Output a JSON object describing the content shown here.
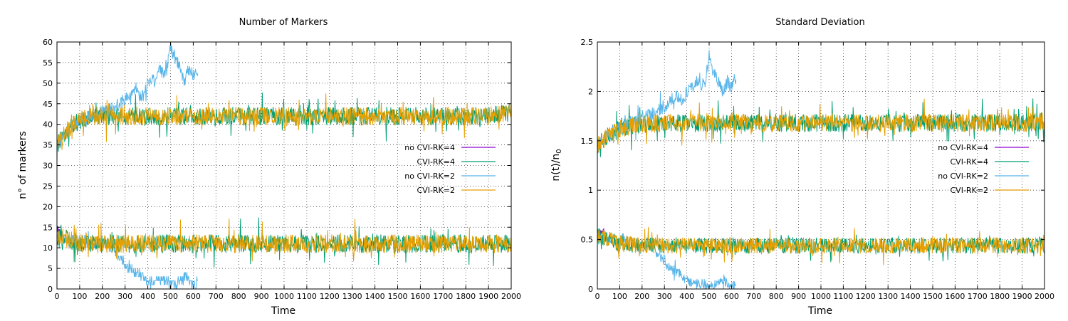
{
  "chart_data": [
    {
      "type": "line",
      "title": "Number of Markers",
      "xlabel": "Time",
      "ylabel": "n° of markers",
      "xlim": [
        0,
        2000
      ],
      "ylim": [
        0,
        60
      ],
      "xticks": [
        0,
        100,
        200,
        300,
        400,
        500,
        600,
        700,
        800,
        900,
        1000,
        1100,
        1200,
        1300,
        1400,
        1500,
        1600,
        1700,
        1800,
        1900,
        2000
      ],
      "yticks": [
        0,
        5,
        10,
        15,
        20,
        25,
        30,
        35,
        40,
        45,
        50,
        55,
        60
      ],
      "grid": true,
      "legend_position": "right-middle",
      "series": [
        {
          "name": "no CVI-RK=4",
          "color": "#9400d3",
          "x": [
            0,
            10,
            20
          ],
          "values": [
            15,
            14,
            13
          ]
        },
        {
          "name": "CVI-RK=4",
          "color": "#009e73",
          "x": [
            0,
            25,
            50,
            100,
            150,
            200,
            300,
            400,
            500,
            600,
            700,
            800,
            900,
            1000,
            1100,
            1200,
            1300,
            1400,
            1500,
            1600,
            1700,
            1800,
            1900,
            2000
          ],
          "values": [
            35,
            37,
            39,
            41,
            42,
            42,
            42,
            42,
            42,
            42,
            42,
            42,
            42,
            42,
            42,
            42,
            42,
            42,
            42,
            42,
            42,
            42,
            42,
            43
          ]
        },
        {
          "name": "no CVI-RK=2",
          "color": "#56b4e9",
          "x": [
            0,
            50,
            100,
            150,
            200,
            250,
            300,
            350,
            380,
            400,
            430,
            450,
            480,
            500,
            520,
            540,
            560,
            580,
            600,
            620
          ],
          "values": [
            35,
            39,
            41,
            42,
            43,
            44,
            46,
            48,
            47,
            50,
            51,
            53,
            52,
            59,
            56,
            54,
            51,
            53,
            52,
            53
          ]
        },
        {
          "name": "CVI-RK=2",
          "color": "#e69f00",
          "x": [
            0,
            25,
            50,
            100,
            150,
            200,
            300,
            400,
            500,
            600,
            700,
            800,
            900,
            1000,
            1100,
            1200,
            1300,
            1400,
            1500,
            1600,
            1700,
            1800,
            1900,
            2000
          ],
          "values": [
            35,
            37,
            39,
            41,
            42,
            42,
            42,
            42,
            42,
            42,
            42,
            42,
            42,
            42,
            42,
            42,
            42,
            42,
            42,
            42,
            42,
            42,
            42,
            43
          ]
        },
        {
          "name": "no CVI-RK=2",
          "color": "#56b4e9",
          "x": [
            0,
            50,
            100,
            150,
            200,
            250,
            270,
            300,
            320,
            350,
            380,
            400,
            430,
            450,
            480,
            500,
            520,
            540,
            560,
            580,
            600,
            620
          ],
          "values": [
            13,
            12,
            12,
            11,
            11,
            10,
            8,
            6,
            5,
            4,
            3,
            2,
            2,
            2,
            2,
            1,
            1,
            2,
            3,
            2,
            1,
            1
          ]
        },
        {
          "name": "CVI-RK=4",
          "color": "#009e73",
          "x": [
            0,
            50,
            100,
            200,
            300,
            400,
            500,
            600,
            700,
            800,
            900,
            1000,
            1100,
            1200,
            1300,
            1400,
            1500,
            1600,
            1700,
            1800,
            1900,
            2000
          ],
          "values": [
            13,
            12,
            11,
            11,
            11,
            11,
            11,
            11,
            11,
            11,
            11,
            11,
            11,
            11,
            11,
            11,
            11,
            11,
            11,
            11,
            11,
            11
          ]
        },
        {
          "name": "CVI-RK=2",
          "color": "#e69f00",
          "x": [
            0,
            50,
            100,
            200,
            300,
            400,
            500,
            600,
            700,
            800,
            900,
            1000,
            1100,
            1200,
            1300,
            1400,
            1500,
            1600,
            1700,
            1800,
            1900,
            2000
          ],
          "values": [
            13,
            12,
            11,
            11,
            11,
            11,
            11,
            11,
            11,
            11,
            11,
            11,
            11,
            11,
            11,
            11,
            11,
            11,
            11,
            11,
            11,
            11
          ]
        }
      ]
    },
    {
      "type": "line",
      "title": "Standard Deviation",
      "xlabel": "Time",
      "ylabel": "n(t)/n0",
      "xlim": [
        0,
        2000
      ],
      "ylim": [
        0,
        2.5
      ],
      "xticks": [
        0,
        100,
        200,
        300,
        400,
        500,
        600,
        700,
        800,
        900,
        1000,
        1100,
        1200,
        1300,
        1400,
        1500,
        1600,
        1700,
        1800,
        1900,
        2000
      ],
      "yticks": [
        0,
        0.5,
        1,
        1.5,
        2,
        2.5
      ],
      "grid": true,
      "legend_position": "right-middle",
      "series": [
        {
          "name": "no CVI-RK=4",
          "color": "#9400d3",
          "x": [
            0,
            10,
            20,
            30
          ],
          "values": [
            0.55,
            0.56,
            0.58,
            0.6
          ]
        },
        {
          "name": "CVI-RK=4",
          "color": "#009e73",
          "x": [
            0,
            25,
            50,
            100,
            150,
            200,
            300,
            400,
            500,
            600,
            700,
            800,
            900,
            1000,
            1100,
            1200,
            1300,
            1400,
            1500,
            1600,
            1700,
            1800,
            1900,
            2000
          ],
          "values": [
            1.45,
            1.5,
            1.55,
            1.62,
            1.65,
            1.67,
            1.68,
            1.68,
            1.68,
            1.68,
            1.68,
            1.68,
            1.68,
            1.68,
            1.68,
            1.68,
            1.68,
            1.68,
            1.68,
            1.68,
            1.68,
            1.68,
            1.68,
            1.7
          ]
        },
        {
          "name": "no CVI-RK=2",
          "color": "#56b4e9",
          "x": [
            0,
            50,
            100,
            150,
            200,
            250,
            300,
            350,
            380,
            400,
            430,
            450,
            480,
            500,
            520,
            540,
            560,
            580,
            600,
            620
          ],
          "values": [
            1.45,
            1.55,
            1.62,
            1.68,
            1.72,
            1.78,
            1.85,
            1.95,
            1.9,
            2.0,
            2.05,
            2.1,
            2.05,
            2.35,
            2.2,
            2.1,
            2.0,
            2.1,
            2.05,
            2.15
          ]
        },
        {
          "name": "CVI-RK=2",
          "color": "#e69f00",
          "x": [
            0,
            25,
            50,
            100,
            150,
            200,
            300,
            400,
            500,
            600,
            700,
            800,
            900,
            1000,
            1100,
            1200,
            1300,
            1400,
            1500,
            1600,
            1700,
            1800,
            1900,
            2000
          ],
          "values": [
            1.45,
            1.5,
            1.55,
            1.62,
            1.65,
            1.67,
            1.68,
            1.68,
            1.68,
            1.68,
            1.68,
            1.68,
            1.68,
            1.68,
            1.68,
            1.68,
            1.68,
            1.68,
            1.68,
            1.68,
            1.68,
            1.68,
            1.68,
            1.7
          ]
        },
        {
          "name": "no CVI-RK=2",
          "color": "#56b4e9",
          "x": [
            0,
            50,
            100,
            150,
            200,
            250,
            270,
            300,
            320,
            350,
            380,
            400,
            430,
            450,
            480,
            500,
            520,
            540,
            560,
            580,
            600,
            620
          ],
          "values": [
            0.55,
            0.52,
            0.5,
            0.48,
            0.45,
            0.42,
            0.35,
            0.28,
            0.22,
            0.18,
            0.12,
            0.08,
            0.06,
            0.06,
            0.05,
            0.03,
            0.03,
            0.06,
            0.1,
            0.06,
            0.03,
            0.03
          ]
        },
        {
          "name": "CVI-RK=4",
          "color": "#009e73",
          "x": [
            0,
            50,
            100,
            200,
            300,
            400,
            500,
            600,
            700,
            800,
            900,
            1000,
            1100,
            1200,
            1300,
            1400,
            1500,
            1600,
            1700,
            1800,
            1900,
            2000
          ],
          "values": [
            0.55,
            0.5,
            0.46,
            0.44,
            0.44,
            0.44,
            0.44,
            0.44,
            0.44,
            0.44,
            0.44,
            0.44,
            0.44,
            0.44,
            0.44,
            0.44,
            0.44,
            0.44,
            0.44,
            0.44,
            0.44,
            0.44
          ]
        },
        {
          "name": "CVI-RK=2",
          "color": "#e69f00",
          "x": [
            0,
            50,
            100,
            200,
            300,
            400,
            500,
            600,
            700,
            800,
            900,
            1000,
            1100,
            1200,
            1300,
            1400,
            1500,
            1600,
            1700,
            1800,
            1900,
            2000
          ],
          "values": [
            0.55,
            0.5,
            0.46,
            0.44,
            0.44,
            0.44,
            0.44,
            0.44,
            0.44,
            0.44,
            0.44,
            0.44,
            0.44,
            0.44,
            0.44,
            0.44,
            0.44,
            0.44,
            0.44,
            0.44,
            0.44,
            0.44
          ]
        }
      ]
    }
  ],
  "legend": {
    "entries": [
      {
        "label": "no CVI-RK=4",
        "color": "#9400d3"
      },
      {
        "label": "CVI-RK=4",
        "color": "#009e73"
      },
      {
        "label": "no CVI-RK=2",
        "color": "#56b4e9"
      },
      {
        "label": "CVI-RK=2",
        "color": "#e69f00"
      }
    ]
  }
}
